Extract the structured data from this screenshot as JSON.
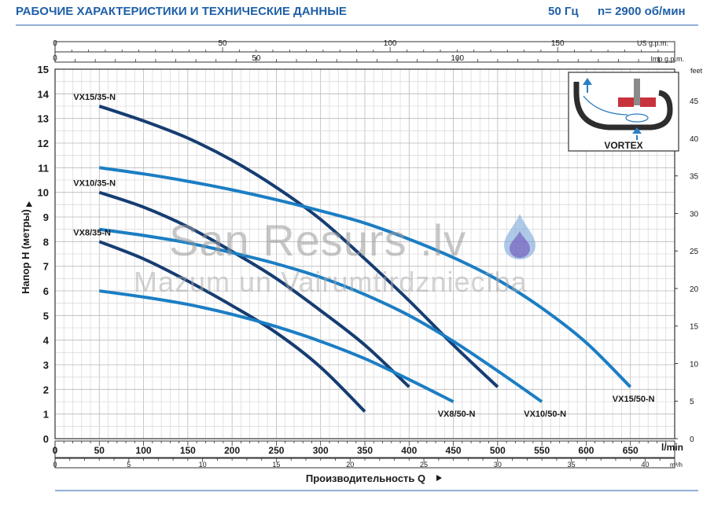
{
  "header": {
    "title": "РАБОЧИЕ ХАРАКТЕРИСТИКИ И ТЕХНИЧЕСКИЕ ДАННЫЕ",
    "freq": "50 Гц",
    "speed": "n= 2900 об/мин"
  },
  "watermark": {
    "main": "San Resurs .lv",
    "sub": "Mazum un Vairumtirdzniecība"
  },
  "inset": {
    "label": "VORTEX"
  },
  "colors": {
    "dark_curve": "#163d72",
    "light_curve": "#1c7ec4",
    "header": "#1f5fa8",
    "grid": "#c9c9c9"
  },
  "chart_data": {
    "type": "line",
    "xlabel": "Производительность Q",
    "ylabel": "Напор H (метры)",
    "x_unit": "l/min",
    "xlim": [
      0,
      700
    ],
    "ylim": [
      0,
      15
    ],
    "x_ticks": [
      0,
      50,
      100,
      150,
      200,
      250,
      300,
      350,
      400,
      450,
      500,
      550,
      600,
      650
    ],
    "y_ticks": [
      0,
      1,
      2,
      3,
      4,
      5,
      6,
      7,
      8,
      9,
      10,
      11,
      12,
      13,
      14,
      15
    ],
    "secondary_axes": {
      "us_gpm": {
        "label": "US g.p.m.",
        "ticks": [
          0,
          50,
          100,
          150
        ]
      },
      "imp_gpm": {
        "label": "Imp g.p.m.",
        "ticks": [
          0,
          50,
          100
        ]
      },
      "m3h": {
        "label": "m³/h",
        "ticks": [
          0,
          5,
          10,
          15,
          20,
          25,
          30,
          35,
          40
        ]
      },
      "feet": {
        "label": "feet",
        "ticks": [
          0,
          5,
          10,
          15,
          20,
          25,
          30,
          35,
          40,
          45
        ]
      }
    },
    "series": [
      {
        "name": "VX15/35-N",
        "style": "dark",
        "x": [
          50,
          100,
          150,
          200,
          250,
          300,
          350,
          400,
          450,
          500
        ],
        "y": [
          13.5,
          12.9,
          12.2,
          11.3,
          10.2,
          8.9,
          7.3,
          5.6,
          3.8,
          2.1
        ]
      },
      {
        "name": "VX10/35-N",
        "style": "dark",
        "x": [
          50,
          100,
          150,
          200,
          250,
          300,
          350,
          400
        ],
        "y": [
          10.0,
          9.4,
          8.6,
          7.6,
          6.5,
          5.2,
          3.8,
          2.1
        ]
      },
      {
        "name": "VX8/35-N",
        "style": "dark",
        "x": [
          50,
          100,
          150,
          200,
          250,
          300,
          350
        ],
        "y": [
          8.0,
          7.3,
          6.4,
          5.4,
          4.3,
          2.9,
          1.1
        ]
      },
      {
        "name": "VX15/50-N",
        "style": "light",
        "x": [
          50,
          100,
          150,
          200,
          250,
          300,
          350,
          400,
          450,
          500,
          550,
          600,
          650
        ],
        "y": [
          11.0,
          10.75,
          10.45,
          10.1,
          9.7,
          9.25,
          8.75,
          8.1,
          7.35,
          6.45,
          5.3,
          3.9,
          2.1
        ]
      },
      {
        "name": "VX10/50-N",
        "style": "light",
        "x": [
          50,
          100,
          150,
          200,
          250,
          300,
          350,
          400,
          450,
          500,
          550
        ],
        "y": [
          8.5,
          8.25,
          7.95,
          7.55,
          7.1,
          6.55,
          5.85,
          5.0,
          3.95,
          2.75,
          1.5
        ]
      },
      {
        "name": "VX8/50-N",
        "style": "light",
        "x": [
          50,
          100,
          150,
          200,
          250,
          300,
          350,
          400,
          450
        ],
        "y": [
          6.0,
          5.75,
          5.45,
          5.05,
          4.55,
          3.95,
          3.25,
          2.4,
          1.5
        ]
      }
    ]
  }
}
